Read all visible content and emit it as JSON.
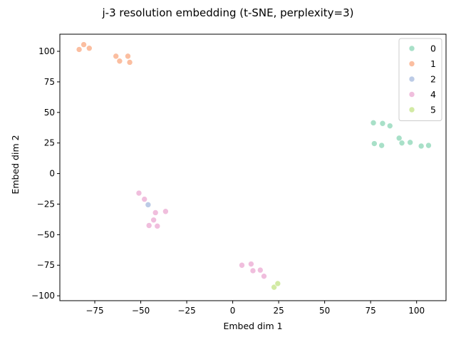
{
  "chart_data": {
    "type": "scatter",
    "title": "j-3 resolution embedding (t-SNE, perplexity=3)",
    "xlabel": "Embed dim 1",
    "ylabel": "Embed dim 2",
    "xlim": [
      -94,
      116
    ],
    "ylim": [
      -104,
      114
    ],
    "xticks": [
      -75,
      -50,
      -25,
      0,
      25,
      50,
      75,
      100
    ],
    "yticks": [
      -100,
      -75,
      -50,
      -25,
      0,
      25,
      50,
      75,
      100
    ],
    "grid": false,
    "legend_position": "top-right",
    "series": [
      {
        "name": "0",
        "color": "#a8e0c8",
        "points": [
          [
            76.5,
            41.5
          ],
          [
            81.5,
            41
          ],
          [
            85.5,
            39
          ],
          [
            90.5,
            29
          ],
          [
            92,
            25
          ],
          [
            96.5,
            25.5
          ],
          [
            102.5,
            22.5
          ],
          [
            106.5,
            23
          ],
          [
            77,
            24.5
          ],
          [
            81,
            23
          ]
        ]
      },
      {
        "name": "1",
        "color": "#fbbea0",
        "points": [
          [
            -83.5,
            101.5
          ],
          [
            -81,
            105.5
          ],
          [
            -78,
            102.5
          ],
          [
            -63.5,
            96
          ],
          [
            -61.5,
            92
          ],
          [
            -57,
            96
          ],
          [
            -56,
            91
          ]
        ]
      },
      {
        "name": "2",
        "color": "#bccbe6",
        "points": [
          [
            -46,
            -25.5
          ]
        ]
      },
      {
        "name": "4",
        "color": "#f0bedd",
        "points": [
          [
            -51,
            -16
          ],
          [
            -48,
            -21
          ],
          [
            -36.5,
            -31
          ],
          [
            -42,
            -32
          ],
          [
            -43,
            -38
          ],
          [
            -45.5,
            -42.5
          ],
          [
            -41,
            -43
          ],
          [
            5,
            -75
          ],
          [
            10,
            -74
          ],
          [
            11,
            -79.5
          ],
          [
            15,
            -79
          ],
          [
            17,
            -84
          ]
        ]
      },
      {
        "name": "5",
        "color": "#d2eaa4",
        "points": [
          [
            22.5,
            -93
          ],
          [
            24.5,
            -90
          ]
        ]
      }
    ]
  }
}
